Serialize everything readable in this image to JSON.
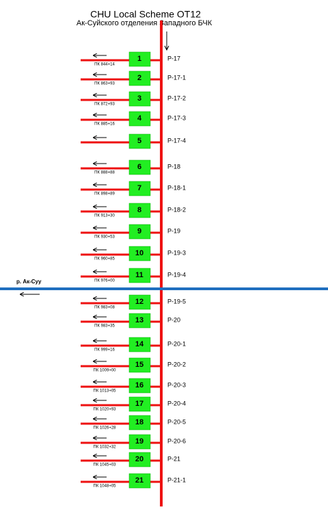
{
  "header": {
    "title": "CHU Local Scheme OT12",
    "subtitle": "Ак-Суйского отделения Западного БЧК"
  },
  "river": {
    "label": "р. Ак-Суу"
  },
  "rows": [
    {
      "number": "1",
      "pk": "ПК 844+14",
      "label": "Р-17"
    },
    {
      "number": "2",
      "pk": "ПК 863+93",
      "label": "Р-17-1"
    },
    {
      "number": "3",
      "pk": "ПК 872+93",
      "label": "Р-17-2"
    },
    {
      "number": "4",
      "pk": "ПК 885+16",
      "label": "Р-17-3"
    },
    {
      "number": "5",
      "label": "Р-17-4"
    },
    {
      "number": "6",
      "pk": "ПК 888+88",
      "label": "Р-18"
    },
    {
      "number": "7",
      "pk": "ПК 898+89",
      "label": "Р-18-1"
    },
    {
      "number": "8",
      "pk": "ПК 913+30",
      "label": "Р-18-2"
    },
    {
      "number": "9",
      "pk": "ПК 930+53",
      "label": "Р-19"
    },
    {
      "number": "10",
      "pk": "ПК 960+85",
      "label": "Р-19-3"
    },
    {
      "number": "11",
      "pk": "ПК 976+00",
      "label": "Р-19-4"
    },
    {
      "number": "12",
      "pk": "ПК 983+08",
      "label": "Р-19-5"
    },
    {
      "number": "13",
      "pk": "ПК 983+35",
      "label": "Р-20"
    },
    {
      "number": "14",
      "pk": "ПК 999+16",
      "label": "Р-20-1"
    },
    {
      "number": "15",
      "pk": "ПК 1009+00",
      "label": "Р-20-2"
    },
    {
      "number": "16",
      "pk": "ПК 1013+05",
      "label": "Р-20-3"
    },
    {
      "number": "17",
      "pk": "ПК 1020+93",
      "label": "Р-20-4"
    },
    {
      "number": "18",
      "pk": "ПК 1026+28",
      "label": "Р-20-5"
    },
    {
      "number": "19",
      "pk": "ПК 1032+32",
      "label": "Р-20-6"
    },
    {
      "number": "20",
      "pk": "ПК 1045+03",
      "label": "Р-21"
    },
    {
      "number": "21",
      "pk": "ПК 1048+05",
      "label": "Р-21-1"
    }
  ]
}
